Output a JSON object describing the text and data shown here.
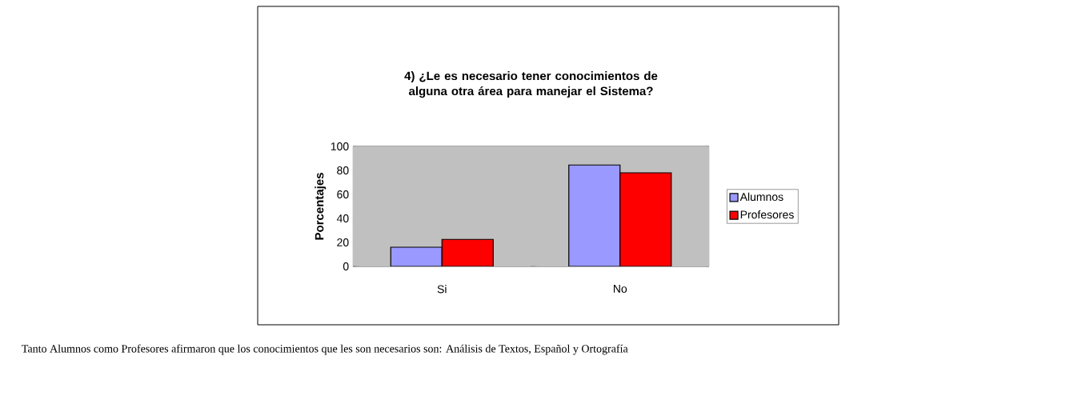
{
  "chart_data": {
    "type": "bar",
    "title": "4) ¿Le es necesario tener conocimientos de alguna otra área para manejar el Sistema?",
    "ylabel": "Porcentajes",
    "categories": [
      "Si",
      "No"
    ],
    "series": [
      {
        "name": "Alumnos",
        "color": "#9999ff",
        "values": [
          16,
          84.5
        ]
      },
      {
        "name": "Profesores",
        "color": "#ff0000",
        "values": [
          22.5,
          78
        ]
      }
    ],
    "ylim": [
      0,
      100
    ],
    "yticks": [
      0,
      20,
      40,
      60,
      80,
      100
    ],
    "grid": "y",
    "legend": "right",
    "annotations": [
      "Tanto Alumnos como Profesores afirmaron que los conocimientos que les son necesarios son: Análisis de Textos, Español y Ortografía"
    ]
  }
}
